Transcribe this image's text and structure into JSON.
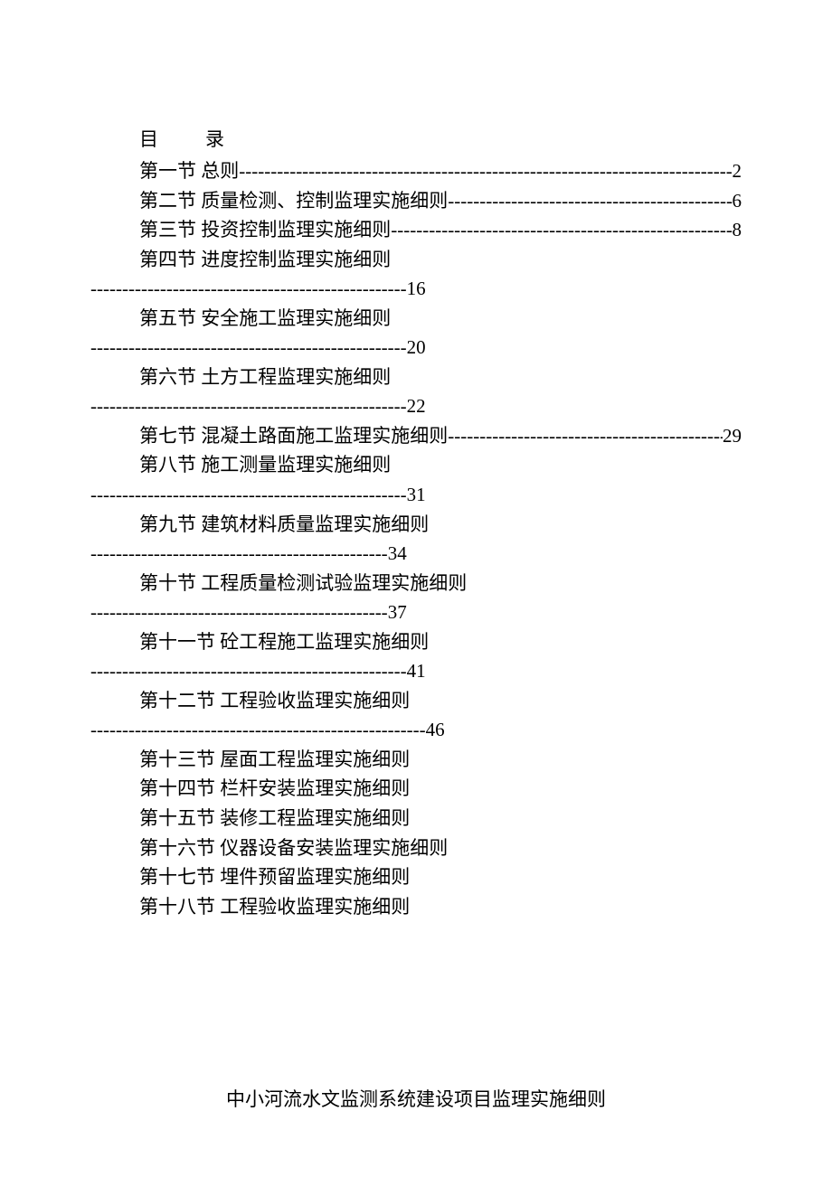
{
  "colors": {
    "text": "#000000",
    "background": "#ffffff"
  },
  "typography": {
    "font_family": "SimSun",
    "font_size_pt": 16,
    "line_height": 1.55
  },
  "heading": {
    "mu": "目",
    "lu": "录"
  },
  "toc": [
    {
      "section": "第一节",
      "title": "总则",
      "page": "2",
      "wrap": false,
      "has_page": true
    },
    {
      "section": "第二节",
      "title": "质量检测、控制监理实施细则",
      "page": "6",
      "wrap": false,
      "has_page": true
    },
    {
      "section": "第三节",
      "title": "投资控制监理实施细则",
      "page": "8",
      "wrap": false,
      "has_page": true
    },
    {
      "section": "第四节",
      "title": "进度控制监理实施细则",
      "page": "16",
      "wrap": true,
      "has_page": true,
      "wrap_dash_count": 50
    },
    {
      "section": "第五节",
      "title": "安全施工监理实施细则",
      "page": "20",
      "wrap": true,
      "has_page": true,
      "wrap_dash_count": 50
    },
    {
      "section": "第六节",
      "title": "土方工程监理实施细则",
      "page": "22",
      "wrap": true,
      "has_page": true,
      "wrap_dash_count": 50
    },
    {
      "section": "第七节",
      "title": "混凝土路面施工监理实施细则",
      "page": "29",
      "wrap": false,
      "has_page": true
    },
    {
      "section": "第八节",
      "title": "施工测量监理实施细则",
      "page": "31",
      "wrap": true,
      "has_page": true,
      "wrap_dash_count": 50
    },
    {
      "section": "第九节",
      "title": "建筑材料质量监理实施细则",
      "page": "34",
      "wrap": true,
      "has_page": true,
      "wrap_dash_count": 47
    },
    {
      "section": "第十节",
      "title": "工程质量检测试验监理实施细则",
      "page": "37",
      "wrap": true,
      "has_page": true,
      "wrap_dash_count": 47
    },
    {
      "section": "第十一节",
      "title": "砼工程施工监理实施细则",
      "page": "41",
      "wrap": true,
      "has_page": true,
      "wrap_dash_count": 50
    },
    {
      "section": "第十二节",
      "title": "工程验收监理实施细则",
      "page": "46",
      "wrap": true,
      "has_page": true,
      "wrap_dash_count": 53
    },
    {
      "section": "第十三节",
      "title": "屋面工程监理实施细则",
      "page": "",
      "wrap": false,
      "has_page": false
    },
    {
      "section": "第十四节",
      "title": "栏杆安装监理实施细则",
      "page": "",
      "wrap": false,
      "has_page": false
    },
    {
      "section": "第十五节",
      "title": "装修工程监理实施细则",
      "page": "",
      "wrap": false,
      "has_page": false
    },
    {
      "section": "第十六节",
      "title": "仪器设备安装监理实施细则",
      "page": "",
      "wrap": false,
      "has_page": false
    },
    {
      "section": "第十七节",
      "title": "埋件预留监理实施细则",
      "page": "",
      "wrap": false,
      "has_page": false
    },
    {
      "section": "第十八节",
      "title": "工程验收监理实施细则",
      "page": "",
      "wrap": false,
      "has_page": false
    }
  ],
  "footer_title": "中小河流水文监测系统建设项目监理实施细则"
}
